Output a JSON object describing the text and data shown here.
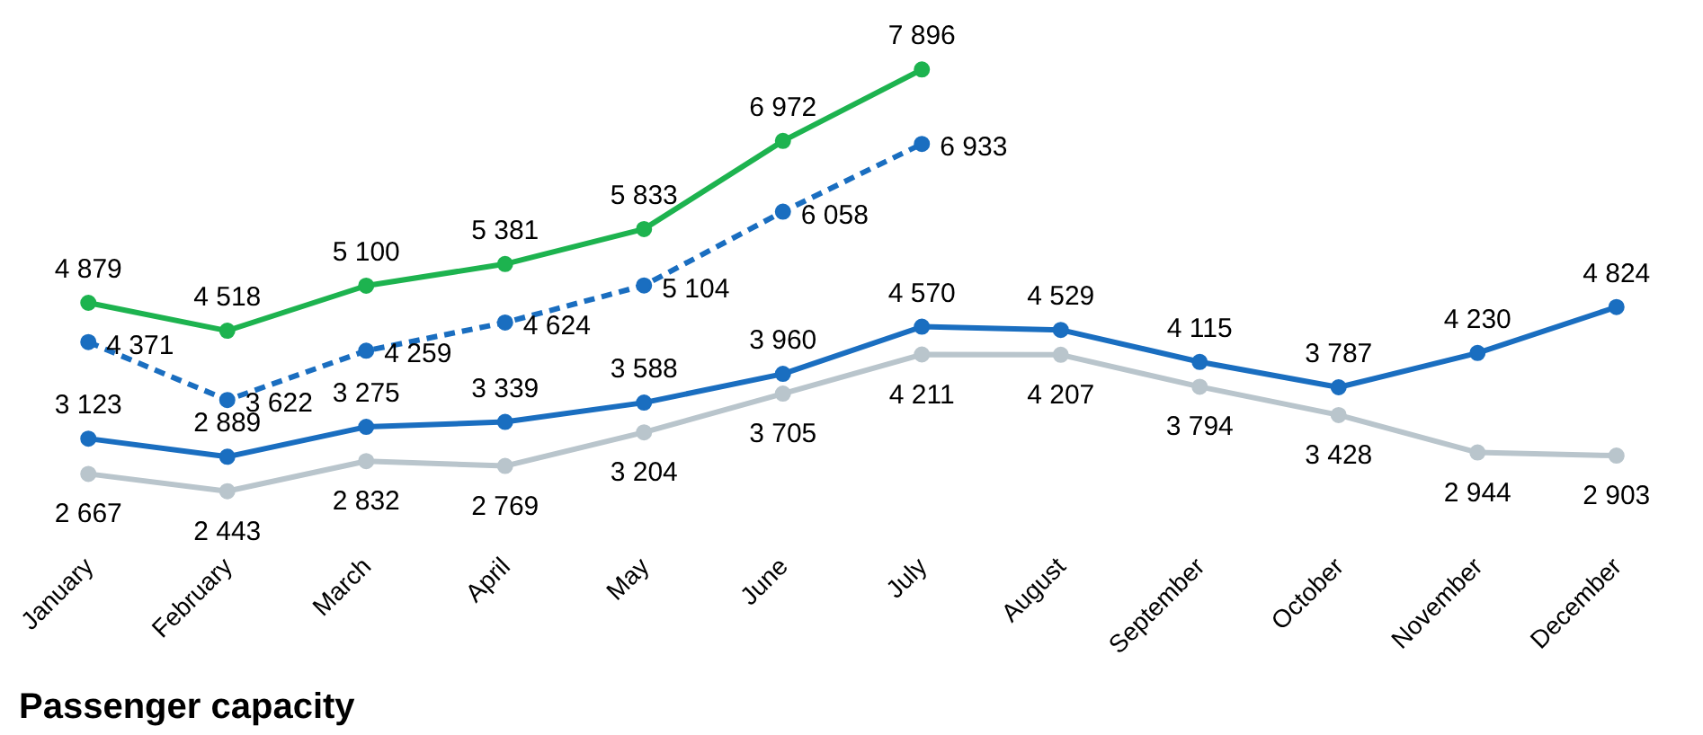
{
  "chart_data": {
    "type": "line",
    "categories": [
      "January",
      "February",
      "March",
      "April",
      "May",
      "June",
      "July",
      "August",
      "September",
      "October",
      "November",
      "December"
    ],
    "series": [
      {
        "color": "#1db34f",
        "line_style": "solid",
        "values": [
          4879,
          4518,
          5100,
          5381,
          5833,
          6972,
          7896,
          null,
          null,
          null,
          null,
          null
        ]
      },
      {
        "color": "#1a6ec0",
        "line_style": "dashed",
        "values": [
          4371,
          3622,
          4259,
          4624,
          5104,
          6058,
          6933,
          null,
          null,
          null,
          null,
          null
        ]
      },
      {
        "color": "#1a6ec0",
        "line_style": "solid",
        "values": [
          3123,
          2889,
          3275,
          3339,
          3588,
          3960,
          4570,
          4529,
          4115,
          3787,
          4230,
          4824
        ]
      },
      {
        "color": "#b9c5cc",
        "line_style": "solid",
        "values": [
          2667,
          2443,
          2832,
          2769,
          3204,
          3705,
          4211,
          4207,
          3794,
          3428,
          2944,
          2903
        ]
      }
    ],
    "tick_labels": "x",
    "marker": "circle",
    "data_labels": true,
    "grid": false,
    "annotations": [
      "Passenger capacity"
    ]
  }
}
